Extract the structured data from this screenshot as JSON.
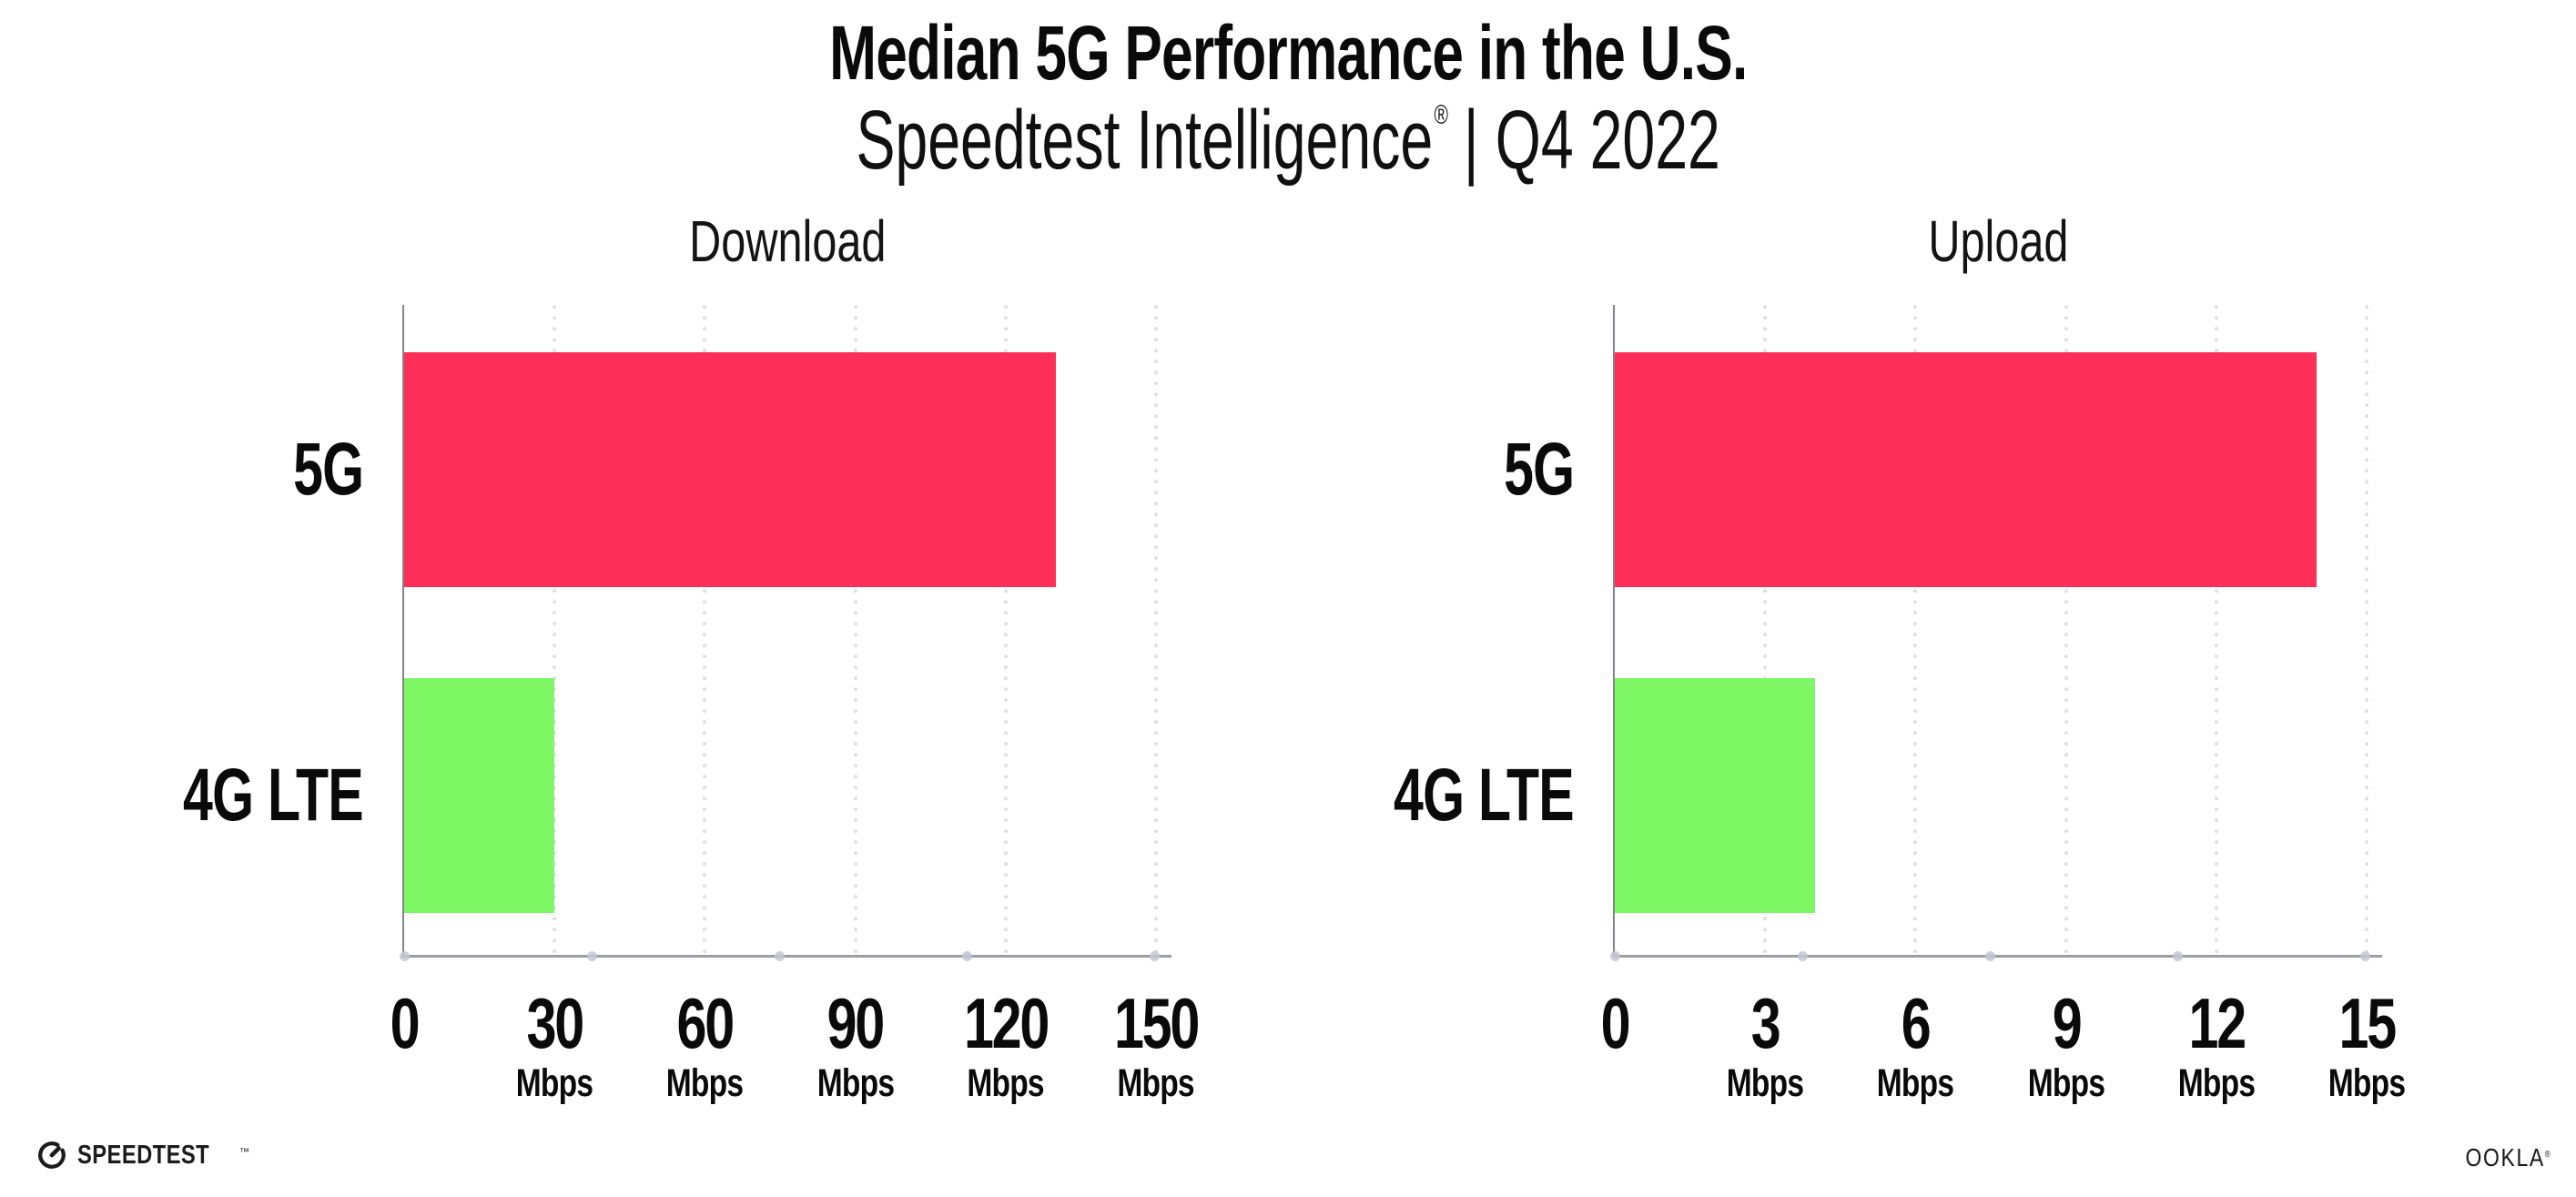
{
  "header": {
    "title": "Median 5G Performance in the U.S.",
    "subtitle_brand": "Speedtest Intelligence",
    "subtitle_registered": "®",
    "subtitle_separator": "|",
    "subtitle_period": "Q4 2022"
  },
  "chart_data": [
    {
      "type": "bar",
      "orientation": "horizontal",
      "title": "Download",
      "categories": [
        "5G",
        "4G LTE"
      ],
      "values": [
        130,
        30
      ],
      "unit": "Mbps",
      "xlabel": "",
      "ylabel": "",
      "xlim": [
        0,
        150
      ],
      "ticks": [
        0,
        30,
        60,
        90,
        120,
        150
      ],
      "unit_on_zero_tick": false,
      "bar_colors": [
        "#FD2E58",
        "#7EF764"
      ],
      "grid": "vertical-dotted",
      "legend": "none"
    },
    {
      "type": "bar",
      "orientation": "horizontal",
      "title": "Upload",
      "categories": [
        "5G",
        "4G LTE"
      ],
      "values": [
        14,
        4
      ],
      "unit": "Mbps",
      "xlabel": "",
      "ylabel": "",
      "xlim": [
        0,
        15
      ],
      "ticks": [
        0,
        3,
        6,
        9,
        12,
        15
      ],
      "unit_on_zero_tick": false,
      "bar_colors": [
        "#FD2E58",
        "#7EF764"
      ],
      "grid": "vertical-dotted",
      "legend": "none"
    }
  ],
  "palette": {
    "bar_5g": "#FD2E58",
    "bar_4g_lte": "#7EF764",
    "gridline_dots": "#DFDFEA",
    "axis_dots": "#C5C5D3",
    "y_axis_line": "#83838B",
    "x_axis_line": "#9C9CA3",
    "text": "#0A0A0A",
    "background": "#FFFFFF"
  },
  "footer": {
    "speedtest_logo_text": "SPEEDTEST",
    "speedtest_trademark": "™",
    "ookla_logo_text": "OOKLA",
    "ookla_registered": "®"
  }
}
